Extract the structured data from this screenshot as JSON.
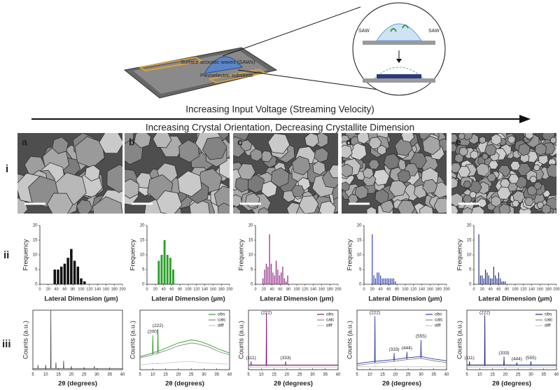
{
  "schematic": {
    "labels": [
      "Surface acoustic waves (SAWs)",
      "Piezoelectric substrate",
      "SAW",
      "SAW"
    ]
  },
  "arrow_labels": [
    "Increasing Input Voltage (Streaming Velocity)",
    "Increasing Crystal Orientation, Decreasing Crystallite Dimension"
  ],
  "row_labels": [
    "i",
    "ii",
    "iii"
  ],
  "panels": [
    "a",
    "b",
    "c",
    "d",
    "e"
  ],
  "chart_data": [
    {
      "type": "histogram",
      "ylabel": "Frequency",
      "xlabel": "Lateral Dimension (µm)",
      "xlim": [
        0,
        200
      ],
      "xticks": [
        0,
        20,
        40,
        60,
        80,
        100,
        120,
        140,
        160,
        180,
        200
      ],
      "ylim": [
        0,
        20
      ],
      "yticks": [
        0,
        5,
        10,
        15,
        20
      ],
      "color": "#111111",
      "bins": [
        32,
        40,
        48,
        56,
        64,
        72,
        80,
        88,
        96,
        104,
        112
      ],
      "counts": [
        5,
        5,
        6,
        7,
        9,
        12,
        8,
        6,
        2,
        1
      ]
    },
    {
      "type": "histogram",
      "ylabel": "Frequency",
      "xlabel": "Lateral Dimension (µm)",
      "xlim": [
        0,
        200
      ],
      "xticks": [
        0,
        20,
        40,
        60,
        80,
        100,
        120,
        140,
        160,
        180,
        200
      ],
      "ylim": [
        0,
        20
      ],
      "yticks": [
        0,
        5,
        10,
        15,
        20
      ],
      "color": "#2ca02c",
      "bins": [
        25,
        32,
        39,
        46,
        53,
        60,
        67
      ],
      "counts": [
        8,
        10,
        15,
        10,
        9,
        5
      ]
    },
    {
      "type": "histogram",
      "ylabel": "Frequency",
      "xlabel": "Lateral Dimension (µm)",
      "xlim": [
        0,
        200
      ],
      "xticks": [
        0,
        20,
        40,
        60,
        80,
        100,
        120,
        140,
        160,
        180,
        200
      ],
      "ylim": [
        0,
        20
      ],
      "yticks": [
        0,
        5,
        10,
        15,
        20
      ],
      "color": "#8b1a7a",
      "bins": [
        16,
        20,
        24,
        28,
        32,
        36,
        40,
        44,
        48,
        52,
        56,
        60,
        64,
        68,
        72,
        76,
        80
      ],
      "counts": [
        2,
        5,
        7,
        6,
        17,
        7,
        4,
        3,
        8,
        5,
        3,
        4,
        6,
        2,
        1,
        3
      ]
    },
    {
      "type": "histogram",
      "ylabel": "Frequency",
      "xlabel": "Lateral Dimension (µm)",
      "xlim": [
        0,
        200
      ],
      "xticks": [
        0,
        20,
        40,
        60,
        80,
        100,
        120,
        140,
        160,
        180,
        200
      ],
      "ylim": [
        0,
        20
      ],
      "yticks": [
        0,
        5,
        10,
        15,
        20
      ],
      "color": "#2b3bb0",
      "bins": [
        18,
        22,
        26,
        30,
        34,
        38,
        42,
        46,
        50,
        54,
        58,
        62,
        66,
        70,
        74,
        78
      ],
      "counts": [
        17,
        3,
        2,
        4,
        4,
        3,
        2,
        2,
        2,
        2,
        2,
        2,
        2,
        2,
        1
      ]
    },
    {
      "type": "histogram",
      "ylabel": "Frequency",
      "xlabel": "Lateral Dimension (µm)",
      "xlim": [
        0,
        200
      ],
      "xticks": [
        0,
        20,
        40,
        60,
        80,
        100,
        120,
        140,
        160,
        180,
        200
      ],
      "ylim": [
        0,
        20
      ],
      "yticks": [
        0,
        5,
        10,
        15,
        20
      ],
      "color": "#1f2a80",
      "bins": [
        10,
        14,
        18,
        22,
        26,
        30,
        34,
        38,
        42,
        46,
        50,
        54,
        58,
        62,
        66,
        70,
        74,
        78
      ],
      "counts": [
        17,
        3,
        3,
        2,
        5,
        4,
        3,
        2,
        2,
        6,
        3,
        2,
        4,
        2,
        1,
        1,
        1
      ]
    },
    {
      "type": "line",
      "ylabel": "Counts (a.u.)",
      "xlabel": "2θ (degrees)",
      "xlim": [
        5,
        40
      ],
      "xticks": [
        5,
        10,
        15,
        20,
        25,
        30,
        35,
        40
      ],
      "ylim": [
        0,
        100
      ],
      "x": [
        5,
        6.9,
        7,
        7.1,
        9.9,
        10,
        10.1,
        11.9,
        12,
        12.1,
        13.9,
        14,
        14.1,
        16.9,
        17,
        17.1,
        19.9,
        20,
        20.1,
        24.9,
        25,
        25.1,
        28.9,
        29,
        29.1,
        34.9,
        35,
        35.1,
        40
      ],
      "series": [
        {
          "color": "#555555",
          "values": [
            2,
            2,
            8,
            2,
            2,
            8,
            2,
            2,
            100,
            2,
            2,
            12,
            2,
            2,
            15,
            2,
            2,
            6,
            2,
            2,
            4,
            2,
            2,
            6,
            2,
            2,
            3,
            2,
            2
          ]
        }
      ],
      "annotations": []
    },
    {
      "type": "line",
      "ylabel": "Counts (a.u.)",
      "xlabel": "2θ (degrees)",
      "xlim": [
        5,
        40
      ],
      "xticks": [
        5,
        10,
        15,
        20,
        25,
        30,
        35,
        40
      ],
      "ylim": [
        0,
        100
      ],
      "x": [
        5,
        9.9,
        10,
        10.1,
        11.9,
        12,
        12.1,
        15,
        20,
        25,
        28,
        32,
        36,
        40
      ],
      "series": [
        {
          "name": "obs",
          "color": "#2ca02c",
          "values": [
            22,
            28,
            58,
            29,
            30,
            68,
            31,
            36,
            45,
            50,
            48,
            42,
            34,
            28
          ]
        },
        {
          "name": "calc",
          "color": "#888888",
          "values": [
            20,
            25,
            50,
            26,
            27,
            60,
            28,
            32,
            40,
            45,
            43,
            38,
            30,
            25
          ]
        },
        {
          "name": "diff",
          "color": "#cccccc",
          "values": [
            8,
            10,
            12,
            10,
            10,
            12,
            10,
            11,
            13,
            14,
            12,
            11,
            10,
            9
          ]
        }
      ],
      "annotations": [
        {
          "text": "(200)",
          "x": 10
        },
        {
          "text": "(222)",
          "x": 12
        }
      ]
    },
    {
      "type": "line",
      "ylabel": "Counts (a.u.)",
      "xlabel": "2θ (degrees)",
      "xlim": [
        5,
        40
      ],
      "xticks": [
        5,
        10,
        15,
        20,
        25,
        30,
        35,
        40
      ],
      "ylim": [
        0,
        100
      ],
      "x": [
        5,
        5.9,
        6,
        6.1,
        11.9,
        12,
        12.1,
        19.4,
        19.5,
        19.6,
        40
      ],
      "series": [
        {
          "name": "obs",
          "color": "#8b1a7a",
          "values": [
            8,
            8,
            14,
            8,
            8,
            95,
            8,
            8,
            14,
            8,
            8
          ]
        },
        {
          "name": "calc",
          "color": "#888888",
          "values": [
            7,
            7,
            12,
            7,
            7,
            90,
            7,
            7,
            12,
            7,
            7
          ]
        },
        {
          "name": "diff",
          "color": "#cccccc",
          "values": [
            4,
            4,
            5,
            4,
            4,
            8,
            4,
            4,
            5,
            4,
            4
          ]
        }
      ],
      "annotations": [
        {
          "text": "(111)",
          "x": 6
        },
        {
          "text": "(222)",
          "x": 12
        },
        {
          "text": "(333)",
          "x": 19.5
        }
      ]
    },
    {
      "type": "line",
      "ylabel": "Counts (a.u.)",
      "xlabel": "2θ (degrees)",
      "xlim": [
        5,
        40
      ],
      "xticks": [
        5,
        10,
        15,
        20,
        25,
        30,
        35,
        40
      ],
      "ylim": [
        0,
        100
      ],
      "x": [
        5,
        8,
        11.9,
        12,
        12.1,
        19.4,
        19.5,
        19.6,
        24.4,
        24.5,
        24.6,
        29.9,
        30,
        30.1,
        35,
        40
      ],
      "series": [
        {
          "name": "obs",
          "color": "#2b3bb0",
          "values": [
            10,
            12,
            14,
            90,
            14,
            17,
            28,
            17,
            20,
            30,
            20,
            22,
            50,
            22,
            18,
            15
          ]
        },
        {
          "name": "calc",
          "color": "#888888",
          "values": [
            7,
            9,
            11,
            85,
            11,
            14,
            25,
            14,
            17,
            27,
            17,
            19,
            46,
            19,
            15,
            12
          ]
        },
        {
          "name": "diff",
          "color": "#cccccc",
          "values": [
            5,
            5,
            5,
            7,
            5,
            5,
            6,
            5,
            5,
            6,
            5,
            5,
            6,
            5,
            5,
            5
          ]
        }
      ],
      "annotations": [
        {
          "text": "(222)",
          "x": 12
        },
        {
          "text": "(333)",
          "x": 19.5
        },
        {
          "text": "(444)",
          "x": 24.5
        },
        {
          "text": "(555)",
          "x": 30
        }
      ]
    },
    {
      "type": "line",
      "ylabel": "Counts (a.u.)",
      "xlabel": "2θ (degrees)",
      "xlim": [
        5,
        40
      ],
      "xticks": [
        5,
        10,
        15,
        20,
        25,
        30,
        35,
        40
      ],
      "ylim": [
        0,
        100
      ],
      "x": [
        5,
        5.9,
        6,
        6.1,
        11.9,
        12,
        12.1,
        19.4,
        19.5,
        19.6,
        24.4,
        24.5,
        24.6,
        29.9,
        30,
        30.1,
        40
      ],
      "series": [
        {
          "name": "obs",
          "color": "#1f2a80",
          "values": [
            8,
            8,
            14,
            8,
            8,
            92,
            8,
            8,
            22,
            8,
            8,
            12,
            8,
            8,
            14,
            8,
            8
          ]
        },
        {
          "name": "calc",
          "color": "#888888",
          "values": [
            7,
            7,
            12,
            7,
            7,
            88,
            7,
            7,
            20,
            7,
            7,
            11,
            7,
            7,
            12,
            7,
            7
          ]
        },
        {
          "name": "diff",
          "color": "#cccccc",
          "values": [
            4,
            4,
            5,
            4,
            4,
            7,
            4,
            4,
            5,
            4,
            4,
            4,
            4,
            4,
            5,
            4,
            4
          ]
        }
      ],
      "annotations": [
        {
          "text": "(111)",
          "x": 6
        },
        {
          "text": "(222)",
          "x": 12
        },
        {
          "text": "(333)",
          "x": 19.5
        },
        {
          "text": "(444)",
          "x": 24.5
        },
        {
          "text": "(555)",
          "x": 30
        }
      ]
    }
  ]
}
